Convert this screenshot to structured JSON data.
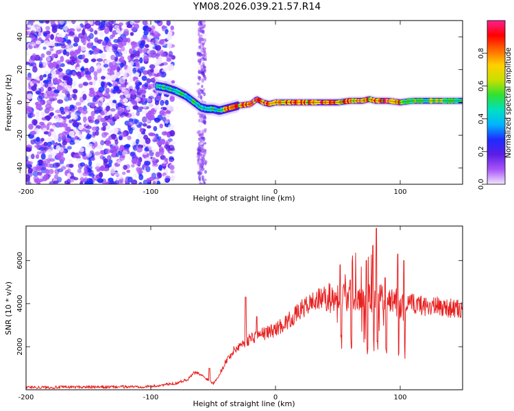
{
  "title": "YM08.2026.039.21.57.R14",
  "chart_data": [
    {
      "type": "heatmap",
      "name": "spectrogram",
      "xlabel": "Height of straight line (km)",
      "ylabel": "Frequency (Hz)",
      "xlim": [
        -200,
        150
      ],
      "ylim": [
        -50,
        50
      ],
      "xticks": [
        -200,
        -100,
        0,
        100
      ],
      "yticks": [
        -40,
        -20,
        0,
        20,
        40
      ],
      "colorbar": {
        "label": "Normalized spectral amplitude",
        "range": [
          0,
          1
        ],
        "ticks": [
          0.0,
          0.2,
          0.4,
          0.6,
          0.8
        ],
        "colors": [
          "#f2e6ff",
          "#a855f7",
          "#5b1ee6",
          "#1e2bff",
          "#00b4ff",
          "#00e0c0",
          "#30e030",
          "#c8e000",
          "#ffd000",
          "#ff6a00",
          "#ff0000",
          "#ff2090"
        ]
      },
      "noise_region_x": [
        -200,
        -90
      ],
      "ridge": {
        "x": [
          -95,
          -88,
          -80,
          -72,
          -65,
          -60,
          -55,
          -50,
          -45,
          -40,
          -35,
          -30,
          -20,
          -15,
          -10,
          -5,
          0,
          10,
          20,
          30,
          40,
          50,
          60,
          70,
          75,
          80,
          90,
          100,
          110,
          120,
          130,
          140,
          150
        ],
        "freq": [
          10,
          9,
          7,
          4,
          0,
          -3,
          -4,
          -4,
          -5,
          -4,
          -3,
          -2,
          -1,
          2,
          0,
          -1,
          0,
          0,
          0,
          0,
          0,
          0,
          1,
          1,
          2,
          1,
          1,
          0,
          1,
          1,
          1,
          1,
          1
        ]
      }
    },
    {
      "type": "line",
      "name": "snr",
      "xlabel": "Height of straight line (km)",
      "ylabel": "SNR (10 * v/v)",
      "xlim": [
        -200,
        150
      ],
      "ylim": [
        0,
        7600
      ],
      "xticks": [
        -200,
        -100,
        0,
        100
      ],
      "yticks": [
        2000,
        4000,
        6000
      ],
      "color": "#e82020",
      "x": [
        -200,
        -180,
        -160,
        -140,
        -120,
        -100,
        -80,
        -70,
        -65,
        -60,
        -55,
        -50,
        -45,
        -40,
        -35,
        -30,
        -25,
        -20,
        -15,
        -10,
        -5,
        0,
        5,
        10,
        15,
        20,
        25,
        30,
        35,
        40,
        45,
        50,
        55,
        60,
        65,
        70,
        75,
        80,
        85,
        90,
        95,
        100,
        105,
        110,
        120,
        130,
        140,
        150
      ],
      "y": [
        120,
        110,
        130,
        120,
        140,
        150,
        300,
        500,
        800,
        700,
        500,
        300,
        700,
        1300,
        1700,
        2000,
        2200,
        2400,
        2500,
        2600,
        2700,
        2800,
        3000,
        3200,
        3400,
        3700,
        3900,
        4100,
        4200,
        4300,
        4250,
        4400,
        4300,
        4400,
        4300,
        4300,
        4200,
        4250,
        4200,
        4100,
        4200,
        3800,
        3900,
        4000,
        3900,
        3850,
        3800,
        3700
      ],
      "spikes": [
        {
          "x": -53,
          "y": 1000
        },
        {
          "x": -24,
          "y": 4300
        },
        {
          "x": -15,
          "y": 3400
        },
        {
          "x": 52,
          "y": 5800
        },
        {
          "x": 60,
          "y": 5100
        },
        {
          "x": 73,
          "y": 6000
        },
        {
          "x": 78,
          "y": 6700
        },
        {
          "x": 81,
          "y": 7500
        },
        {
          "x": 88,
          "y": 5200
        },
        {
          "x": 98,
          "y": 6300
        },
        {
          "x": 103,
          "y": 6000
        }
      ]
    }
  ]
}
